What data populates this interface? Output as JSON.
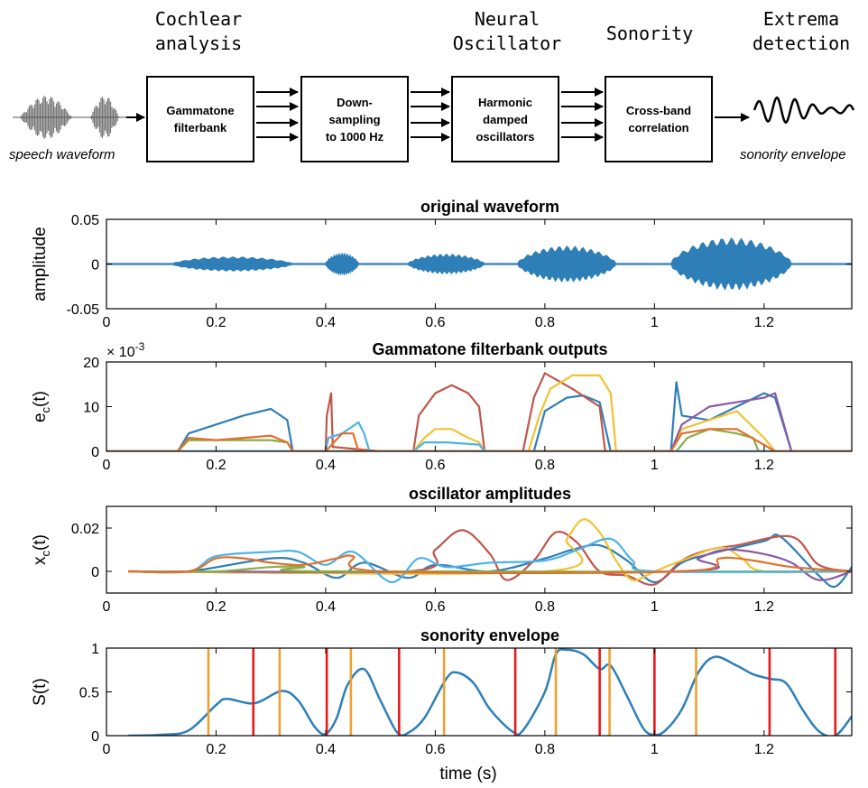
{
  "pipeline": {
    "stages": [
      {
        "title": "Cochlear\nanalysis"
      },
      {
        "title": "Neural\nOscillator"
      },
      {
        "title": "Sonority"
      },
      {
        "title": "Extrema\ndetection"
      }
    ],
    "boxes": [
      {
        "label": "Gammatone\nfilterbank"
      },
      {
        "label": "Down-\nsampling\nto 1000 Hz"
      },
      {
        "label": "Harmonic\ndamped\noscillators"
      },
      {
        "label": "Cross-band\ncorrelation"
      }
    ],
    "input_label": "speech waveform",
    "output_label": "sonority envelope"
  },
  "colors": {
    "blue": "#2e7fb8",
    "red_line": "#e8191a",
    "orange_line": "#f0a030",
    "c1": "#2e7fb8",
    "c2": "#c0564b",
    "c3": "#f2c233",
    "c4": "#8a5aa6",
    "c5": "#8aac47",
    "c6": "#4db3e6",
    "c7": "#e36f2a"
  },
  "chart_data": [
    {
      "type": "line",
      "title": "original waveform",
      "ylabel": "amplitude",
      "xlim": [
        0,
        1.36
      ],
      "ylim": [
        -0.05,
        0.05
      ],
      "xticks": [
        0,
        0.2,
        0.4,
        0.6,
        0.8,
        1,
        1.2
      ],
      "xtick_labels": [
        "0",
        "0.2",
        "0.4",
        "0.6",
        "0.8",
        "1",
        "1.2"
      ],
      "yticks": [
        -0.05,
        0,
        0.05
      ],
      "ytick_labels": [
        "-0.05",
        "0",
        "0.05"
      ],
      "envelope_segments": [
        {
          "start": 0.12,
          "end": 0.34,
          "amp": 0.008
        },
        {
          "start": 0.4,
          "end": 0.46,
          "amp": 0.012
        },
        {
          "start": 0.55,
          "end": 0.69,
          "amp": 0.011
        },
        {
          "start": 0.75,
          "end": 0.93,
          "amp": 0.02
        },
        {
          "start": 1.03,
          "end": 1.25,
          "amp": 0.029
        }
      ]
    },
    {
      "type": "line",
      "title": "Gammatone filterbank outputs",
      "ylabel": "e_c(t)",
      "ylabel_main": "e",
      "ylabel_sub": "c",
      "ylabel_tail": "(t)",
      "scale_label": "× 10",
      "scale_exp": "-3",
      "xlim": [
        0,
        1.36
      ],
      "ylim": [
        0,
        20
      ],
      "xticks": [
        0,
        0.2,
        0.4,
        0.6,
        0.8,
        1,
        1.2
      ],
      "xtick_labels": [
        "0",
        "0.2",
        "0.4",
        "0.6",
        "0.8",
        "1",
        "1.2"
      ],
      "yticks": [
        0,
        10,
        20
      ],
      "ytick_labels": [
        "0",
        "10",
        "20"
      ],
      "series": [
        {
          "color": "c1",
          "x": [
            0,
            0.13,
            0.15,
            0.2,
            0.25,
            0.3,
            0.33,
            0.34,
            0.4,
            0.6,
            0.78,
            0.8,
            0.84,
            0.87,
            0.9,
            0.92,
            1.03,
            1.04,
            1.05,
            1.1,
            1.15,
            1.2,
            1.22,
            1.25,
            1.36
          ],
          "y": [
            0,
            0,
            4,
            6,
            8,
            9.5,
            7,
            0,
            0,
            0,
            0,
            9,
            12,
            12.5,
            11,
            0,
            0,
            15.5,
            8,
            7,
            10,
            13,
            12,
            0,
            0
          ]
        },
        {
          "color": "c2",
          "x": [
            0,
            0.4,
            0.402,
            0.41,
            0.413,
            0.5,
            0.56,
            0.57,
            0.6,
            0.63,
            0.66,
            0.68,
            0.69,
            0.76,
            0.78,
            0.8,
            0.85,
            0.9,
            0.91,
            1.36
          ],
          "y": [
            0,
            0,
            8,
            13,
            1,
            0,
            0,
            8,
            13,
            14.8,
            13,
            10,
            0,
            0,
            12,
            17.5,
            14,
            10,
            0,
            0
          ]
        },
        {
          "color": "c3",
          "x": [
            0,
            0.56,
            0.58,
            0.6,
            0.63,
            0.66,
            0.68,
            0.69,
            0.77,
            0.79,
            0.81,
            0.85,
            0.9,
            0.92,
            0.93,
            1.03,
            1.05,
            1.1,
            1.15,
            1.2,
            1.22,
            1.36
          ],
          "y": [
            0,
            0,
            3,
            5,
            5,
            3,
            2,
            0,
            0,
            8,
            14,
            17,
            17,
            13,
            0,
            0,
            5,
            7,
            9,
            3,
            0,
            0
          ]
        },
        {
          "color": "c4",
          "x": [
            0,
            1.03,
            1.05,
            1.1,
            1.15,
            1.2,
            1.22,
            1.25,
            1.36
          ],
          "y": [
            0,
            0,
            6,
            10,
            11,
            12,
            13,
            0,
            0
          ]
        },
        {
          "color": "c5",
          "x": [
            0,
            0.13,
            0.15,
            0.3,
            0.33,
            0.34,
            1.04,
            1.06,
            1.1,
            1.15,
            1.18,
            1.19,
            1.36
          ],
          "y": [
            0,
            0,
            2.5,
            2.5,
            2,
            0,
            0,
            3,
            5,
            4,
            3,
            0,
            0
          ]
        },
        {
          "color": "c6",
          "x": [
            0,
            0.4,
            0.405,
            0.43,
            0.46,
            0.47,
            0.48,
            0.56,
            0.58,
            0.62,
            0.68,
            0.69,
            1.36
          ],
          "y": [
            0,
            0,
            3,
            4,
            6.5,
            4,
            0,
            0,
            2,
            2,
            1.5,
            0,
            0
          ]
        },
        {
          "color": "c7",
          "x": [
            0,
            0.13,
            0.15,
            0.2,
            0.25,
            0.3,
            0.33,
            0.34,
            0.4,
            0.43,
            0.45,
            0.46,
            1.03,
            1.05,
            1.1,
            1.15,
            1.22,
            1.36
          ],
          "y": [
            0,
            0,
            3,
            2.5,
            3,
            3.5,
            2,
            0,
            0,
            4,
            4,
            0,
            0,
            4,
            5,
            5,
            0,
            0
          ]
        }
      ]
    },
    {
      "type": "line",
      "title": "oscillator amplitudes",
      "ylabel": "x_c(t)",
      "ylabel_main": "x",
      "ylabel_sub": "c",
      "ylabel_tail": "(t)",
      "xlim": [
        0,
        1.36
      ],
      "ylim": [
        -0.01,
        0.03
      ],
      "xticks": [
        0,
        0.2,
        0.4,
        0.6,
        0.8,
        1,
        1.2
      ],
      "xtick_labels": [
        "0",
        "0.2",
        "0.4",
        "0.6",
        "0.8",
        "1",
        "1.2"
      ],
      "yticks": [
        0,
        0.02
      ],
      "ytick_labels": [
        "0",
        "0.02"
      ],
      "series": [
        {
          "color": "c1",
          "x": [
            0.04,
            0.15,
            0.3,
            0.36,
            0.42,
            0.47,
            0.55,
            0.6,
            0.7,
            0.8,
            0.85,
            0.9,
            0.95,
            1.0,
            1.05,
            1.1,
            1.2,
            1.23,
            1.3,
            1.33,
            1.36
          ],
          "y": [
            0,
            0,
            0.006,
            0.004,
            -0.003,
            0.004,
            -0.003,
            0.003,
            0,
            0.006,
            0.01,
            0.012,
            0.005,
            -0.005,
            0.004,
            0.008,
            0.014,
            0.016,
            -0.002,
            -0.007,
            0.002
          ]
        },
        {
          "color": "c2",
          "x": [
            0.04,
            0.55,
            0.6,
            0.65,
            0.7,
            0.73,
            0.78,
            0.82,
            0.86,
            0.9,
            0.95,
            1.0,
            1.05,
            1.1,
            1.15,
            1.25,
            1.3,
            1.36
          ],
          "y": [
            0,
            0,
            0.01,
            0.019,
            0.008,
            -0.004,
            0.005,
            0.018,
            0.013,
            0,
            -0.002,
            -0.006,
            0.005,
            0.01,
            0.012,
            0.016,
            0.003,
            0
          ]
        },
        {
          "color": "c3",
          "x": [
            0.04,
            0.8,
            0.84,
            0.87,
            0.9,
            0.93,
            0.96,
            1.0,
            1.05,
            1.12,
            1.16,
            1.2,
            1.36
          ],
          "y": [
            0,
            0,
            0.015,
            0.024,
            0.018,
            0.005,
            -0.004,
            0,
            0.005,
            0.011,
            0.006,
            0,
            0
          ]
        },
        {
          "color": "c4",
          "x": [
            0.04,
            1.03,
            1.08,
            1.13,
            1.2,
            1.25,
            1.3,
            1.36
          ],
          "y": [
            0,
            0,
            0.006,
            0.01,
            0.008,
            0.004,
            -0.004,
            0
          ]
        },
        {
          "color": "c5",
          "x": [
            0.04,
            0.2,
            0.3,
            0.36,
            0.4,
            1.36
          ],
          "y": [
            0,
            0,
            0.002,
            0.002,
            0,
            0
          ]
        },
        {
          "color": "c6",
          "x": [
            0.04,
            0.15,
            0.2,
            0.3,
            0.35,
            0.4,
            0.45,
            0.52,
            0.57,
            0.62,
            0.7,
            0.8,
            0.86,
            0.92,
            0.96,
            1.0,
            1.36
          ],
          "y": [
            0,
            0,
            0.007,
            0.009,
            0.009,
            0.003,
            0.009,
            -0.005,
            0.006,
            0.002,
            0.004,
            0.005,
            0.01,
            0.015,
            0.005,
            0,
            0
          ]
        },
        {
          "color": "c7",
          "x": [
            0.04,
            0.15,
            0.2,
            0.25,
            0.3,
            0.36,
            0.42,
            0.45,
            0.5,
            1.05,
            1.12,
            1.18,
            1.25,
            1.36
          ],
          "y": [
            0,
            0,
            0.006,
            0.006,
            0.004,
            0.003,
            0.006,
            0.007,
            0,
            0,
            0.006,
            0.005,
            0.002,
            0
          ]
        }
      ]
    },
    {
      "type": "line",
      "title": "sonority envelope",
      "ylabel": "S(t)",
      "xlabel": "time (s)",
      "xlim": [
        0,
        1.36
      ],
      "ylim": [
        0,
        1
      ],
      "xticks": [
        0,
        0.2,
        0.4,
        0.6,
        0.8,
        1,
        1.2
      ],
      "xtick_labels": [
        "0",
        "0.2",
        "0.4",
        "0.6",
        "0.8",
        "1",
        "1.2"
      ],
      "yticks": [
        0,
        0.5,
        1
      ],
      "ytick_labels": [
        "0",
        "0.5",
        "1"
      ],
      "envelope": {
        "x": [
          0.04,
          0.1,
          0.15,
          0.2,
          0.22,
          0.27,
          0.32,
          0.35,
          0.38,
          0.4,
          0.42,
          0.44,
          0.47,
          0.5,
          0.53,
          0.55,
          0.58,
          0.62,
          0.64,
          0.67,
          0.7,
          0.74,
          0.76,
          0.8,
          0.82,
          0.84,
          0.87,
          0.9,
          0.92,
          0.95,
          0.98,
          1.0,
          1.02,
          1.05,
          1.08,
          1.11,
          1.15,
          1.18,
          1.21,
          1.24,
          1.27,
          1.3,
          1.33,
          1.36
        ],
        "y": [
          0,
          0.01,
          0.06,
          0.35,
          0.42,
          0.37,
          0.51,
          0.4,
          0.1,
          0.02,
          0.2,
          0.58,
          0.76,
          0.4,
          0.04,
          0.03,
          0.2,
          0.65,
          0.72,
          0.6,
          0.3,
          0.05,
          0.06,
          0.5,
          0.93,
          0.98,
          0.93,
          0.76,
          0.8,
          0.45,
          0.08,
          0.01,
          0.06,
          0.3,
          0.72,
          0.9,
          0.8,
          0.7,
          0.65,
          0.6,
          0.3,
          0.05,
          0.0,
          0.22
        ]
      },
      "orange_lines": [
        0.186,
        0.316,
        0.446,
        0.616,
        0.82,
        0.918,
        1.076
      ],
      "red_lines": [
        0.268,
        0.402,
        0.534,
        0.746,
        0.9,
        1.0,
        1.21,
        1.33
      ]
    }
  ]
}
